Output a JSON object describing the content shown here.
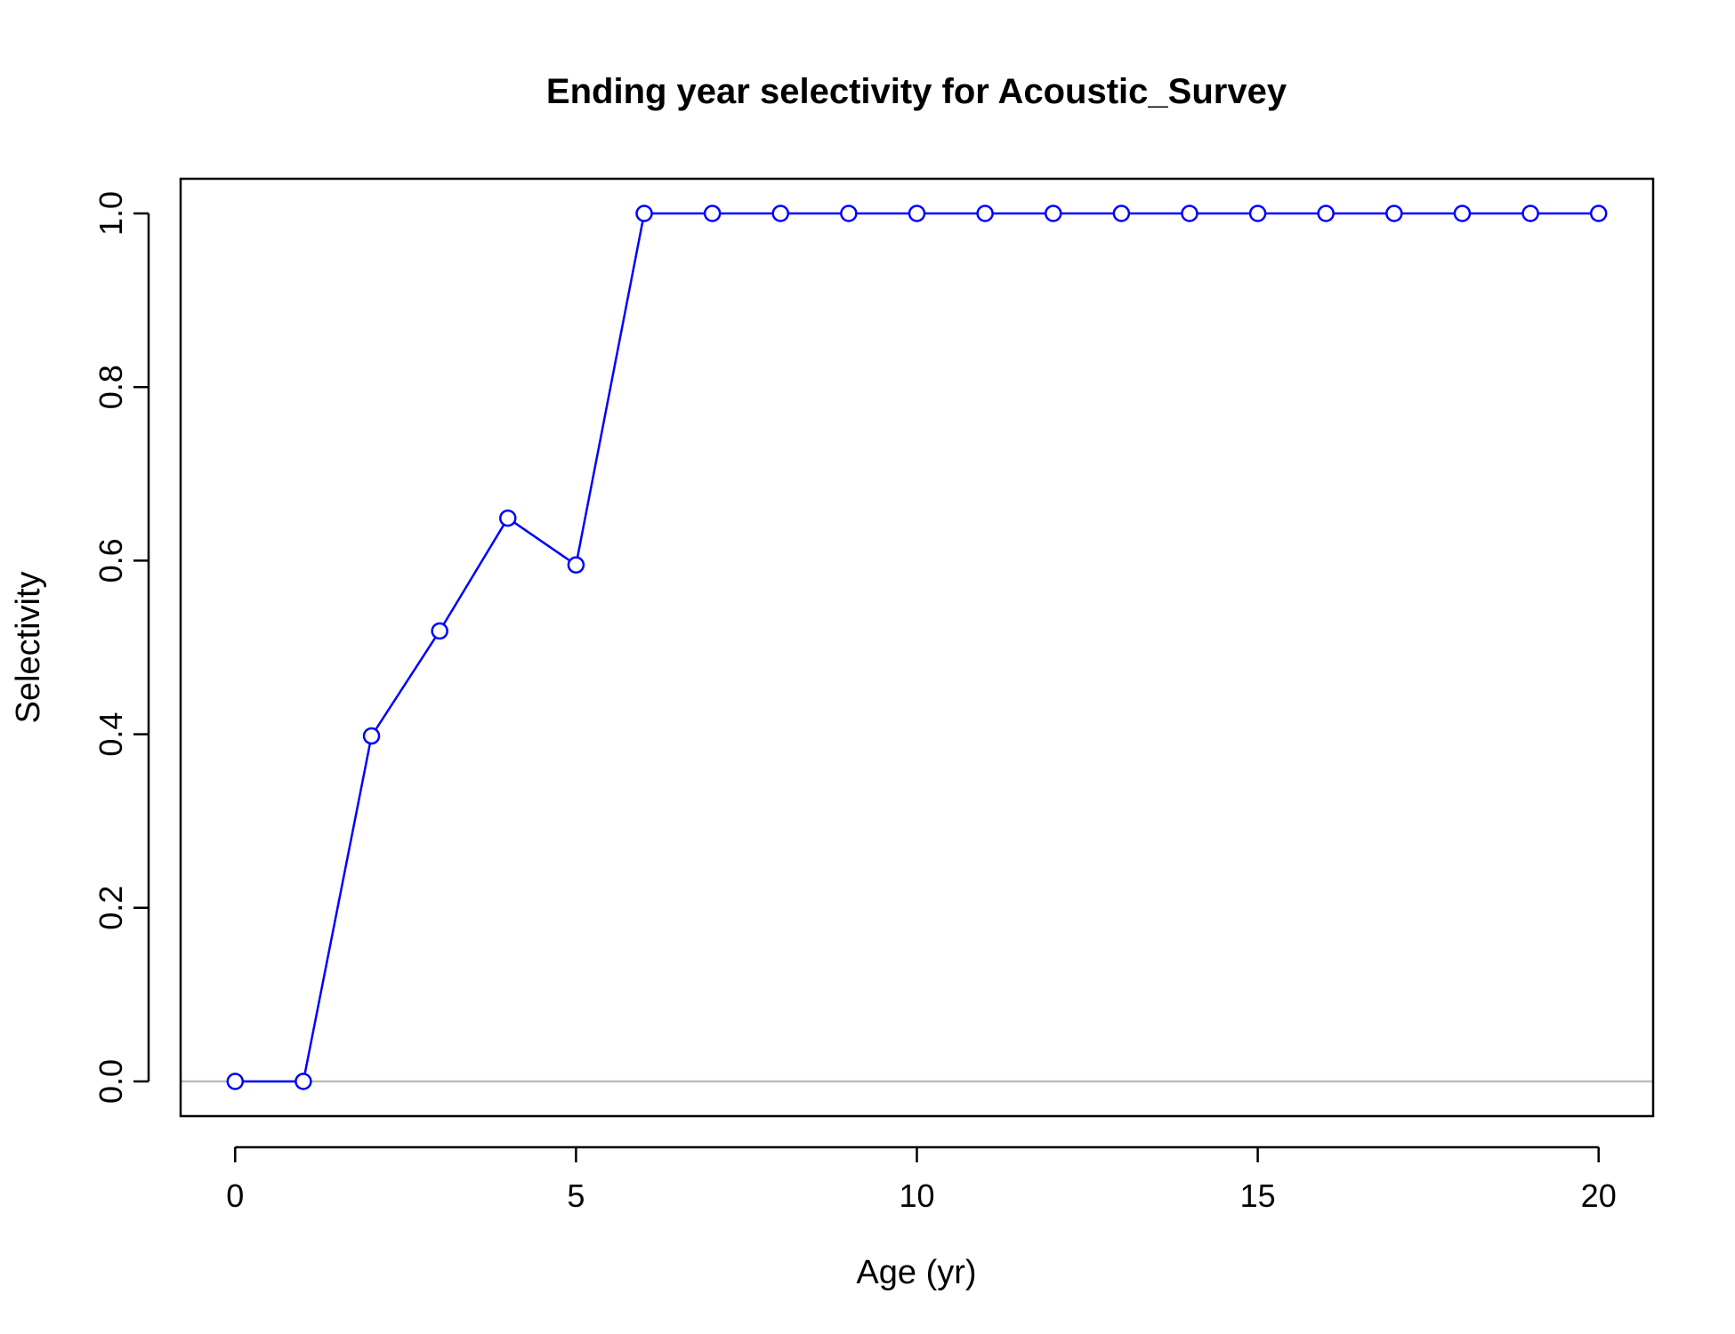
{
  "chart_data": {
    "type": "line",
    "title": "Ending year selectivity for Acoustic_Survey",
    "xlabel": "Age (yr)",
    "ylabel": "Selectivity",
    "xlim": [
      -0.8,
      20.8
    ],
    "ylim": [
      -0.04,
      1.04
    ],
    "xticks": [
      0,
      5,
      10,
      15,
      20
    ],
    "xtick_labels": [
      "0",
      "5",
      "10",
      "15",
      "20"
    ],
    "yticks": [
      0,
      0.2,
      0.4,
      0.6,
      0.8,
      1
    ],
    "ytick_labels": [
      "0.0",
      "0.2",
      "0.4",
      "0.6",
      "0.8",
      "1.0"
    ],
    "grid": false,
    "reference_line": {
      "y": 0,
      "color": "#bebebe"
    },
    "series": [
      {
        "color": "#0000ff",
        "marker": "open-circle",
        "x": [
          0,
          1,
          2,
          3,
          4,
          5,
          6,
          7,
          8,
          9,
          10,
          11,
          12,
          13,
          14,
          15,
          16,
          17,
          18,
          19,
          20
        ],
        "y": [
          0.0,
          0.0,
          0.398,
          0.519,
          0.649,
          0.595,
          1.0,
          1.0,
          1.0,
          1.0,
          1.0,
          1.0,
          1.0,
          1.0,
          1.0,
          1.0,
          1.0,
          1.0,
          1.0,
          1.0,
          1.0
        ]
      }
    ]
  }
}
